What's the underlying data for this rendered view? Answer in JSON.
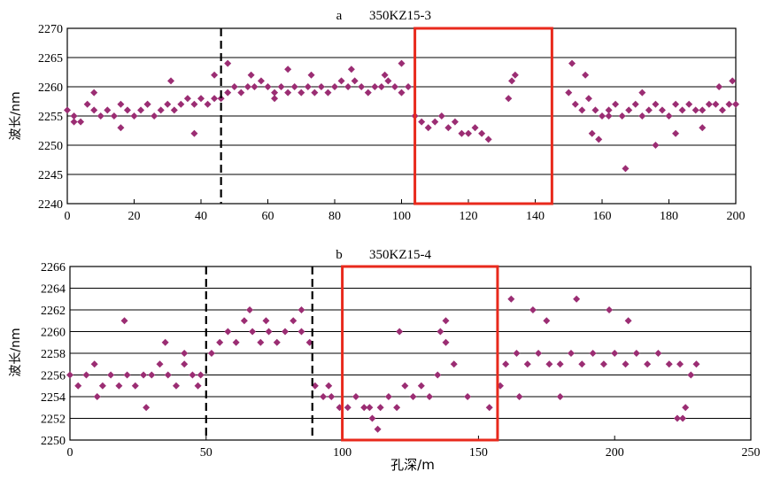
{
  "colors": {
    "marker": "#9b2d73",
    "box": "#e8291c",
    "grid": "#000000"
  },
  "chart_data": [
    {
      "type": "scatter",
      "panel_letter": "a",
      "title": "350KZ15-3",
      "ylabel": "波长/nm",
      "xlabel": "",
      "xlim": [
        0,
        200
      ],
      "ylim": [
        2240,
        2270
      ],
      "xticks": [
        0,
        20,
        40,
        60,
        80,
        100,
        120,
        140,
        160,
        180,
        200
      ],
      "yticks": [
        2240,
        2245,
        2250,
        2255,
        2260,
        2265,
        2270
      ],
      "grid": "horizontal",
      "vlines": [
        46,
        104,
        145
      ],
      "highlight_box": [
        104,
        145
      ],
      "series": [
        {
          "x": [
            0,
            2,
            4,
            6,
            8,
            10,
            12,
            14,
            16,
            18,
            20,
            22,
            24,
            26,
            28,
            30,
            32,
            34,
            36,
            38,
            40,
            42,
            44,
            46,
            48,
            50,
            52,
            54,
            56,
            58,
            60,
            62,
            64,
            66,
            68,
            70,
            72,
            74,
            76,
            78,
            80,
            82,
            84,
            86,
            88,
            90,
            92,
            94,
            96,
            98,
            100,
            102,
            104,
            106,
            108,
            110,
            112,
            114,
            116,
            118,
            120,
            122,
            124,
            126,
            132,
            133,
            134,
            150,
            152,
            154,
            156,
            158,
            160,
            162,
            164,
            166,
            168,
            170,
            172,
            174,
            176,
            178,
            180,
            182,
            184,
            186,
            188,
            190,
            192,
            194,
            196,
            198,
            200,
            2,
            8,
            16,
            24,
            31,
            38,
            44,
            48,
            55,
            62,
            66,
            73,
            85,
            95,
            100,
            151,
            155,
            157,
            159,
            162,
            167,
            172,
            176,
            182,
            190,
            195,
            199
          ],
          "y": [
            2256,
            2255,
            2254,
            2257,
            2256,
            2255,
            2256,
            2255,
            2257,
            2256,
            2255,
            2256,
            2257,
            2255,
            2256,
            2257,
            2256,
            2257,
            2258,
            2257,
            2258,
            2257,
            2258,
            2258,
            2259,
            2260,
            2259,
            2260,
            2260,
            2261,
            2260,
            2259,
            2260,
            2259,
            2260,
            2259,
            2260,
            2259,
            2260,
            2259,
            2260,
            2261,
            2260,
            2261,
            2260,
            2259,
            2260,
            2260,
            2261,
            2260,
            2259,
            2260,
            2255,
            2254,
            2253,
            2254,
            2255,
            2253,
            2254,
            2252,
            2252,
            2253,
            2252,
            2251,
            2258,
            2261,
            2262,
            2259,
            2257,
            2256,
            2258,
            2256,
            2255,
            2256,
            2257,
            2255,
            2256,
            2257,
            2255,
            2256,
            2257,
            2256,
            2255,
            2257,
            2256,
            2257,
            2256,
            2256,
            2257,
            2257,
            2256,
            2257,
            2257,
            2254,
            2259,
            2253,
            2257,
            2261,
            2252,
            2262,
            2264,
            2262,
            2258,
            2263,
            2262,
            2263,
            2262,
            2264,
            2264,
            2262,
            2252,
            2251,
            2255,
            2246,
            2259,
            2250,
            2252,
            2253,
            2260,
            2261
          ]
        }
      ]
    },
    {
      "type": "scatter",
      "panel_letter": "b",
      "title": "350KZ15-4",
      "ylabel": "波长/nm",
      "xlabel": "孔深/m",
      "xlim": [
        0,
        250
      ],
      "ylim": [
        2250,
        2266
      ],
      "xticks": [
        0,
        50,
        100,
        150,
        200,
        250
      ],
      "yticks": [
        2250,
        2252,
        2254,
        2256,
        2258,
        2260,
        2262,
        2264,
        2266
      ],
      "grid": "horizontal",
      "vlines": [
        50,
        89,
        157
      ],
      "highlight_box": [
        100,
        157
      ],
      "series": [
        {
          "x": [
            0,
            3,
            6,
            9,
            12,
            15,
            18,
            21,
            24,
            27,
            30,
            33,
            36,
            39,
            42,
            45,
            48,
            52,
            55,
            58,
            61,
            64,
            67,
            70,
            73,
            76,
            79,
            82,
            85,
            88,
            90,
            93,
            96,
            99,
            102,
            105,
            108,
            111,
            114,
            117,
            120,
            123,
            126,
            129,
            132,
            135,
            138,
            141,
            160,
            164,
            168,
            172,
            176,
            180,
            184,
            188,
            192,
            196,
            200,
            204,
            208,
            212,
            216,
            220,
            224,
            228,
            230,
            20,
            35,
            42,
            66,
            72,
            85,
            121,
            136,
            138,
            162,
            170,
            175,
            186,
            198,
            205,
            225,
            10,
            28,
            47,
            95,
            110,
            113,
            146,
            154,
            158,
            165,
            180,
            223,
            226
          ],
          "y": [
            2256,
            2255,
            2256,
            2257,
            2255,
            2256,
            2255,
            2256,
            2255,
            2256,
            2256,
            2257,
            2256,
            2255,
            2257,
            2256,
            2256,
            2258,
            2259,
            2260,
            2259,
            2261,
            2260,
            2259,
            2260,
            2259,
            2260,
            2261,
            2260,
            2259,
            2255,
            2254,
            2254,
            2253,
            2253,
            2254,
            2253,
            2252,
            2253,
            2254,
            2253,
            2255,
            2254,
            2255,
            2254,
            2256,
            2259,
            2257,
            2257,
            2258,
            2257,
            2258,
            2257,
            2257,
            2258,
            2257,
            2258,
            2257,
            2258,
            2257,
            2258,
            2257,
            2258,
            2257,
            2257,
            2256,
            2257,
            2261,
            2259,
            2258,
            2262,
            2261,
            2262,
            2260,
            2260,
            2261,
            2263,
            2262,
            2261,
            2263,
            2262,
            2261,
            2252,
            2254,
            2253,
            2255,
            2255,
            2253,
            2251,
            2254,
            2253,
            2255,
            2254,
            2254,
            2252,
            2253
          ]
        }
      ]
    }
  ]
}
